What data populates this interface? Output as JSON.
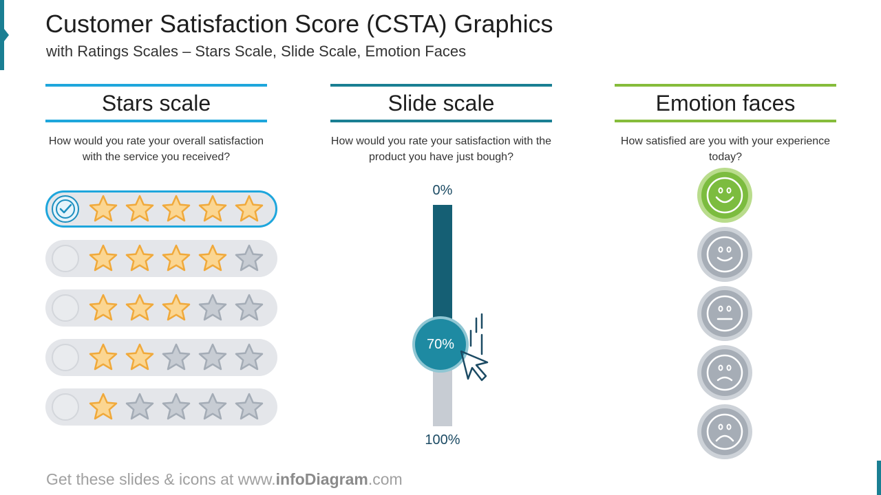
{
  "header": {
    "title": "Customer Satisfaction Score (CSTA) Graphics",
    "subtitle": "with Ratings Scales – Stars Scale, Slide Scale, Emotion Faces"
  },
  "columns": [
    {
      "title": "Stars scale",
      "question": "How would you rate your overall satisfaction with the service you received?",
      "accent": "#1ea6dc"
    },
    {
      "title": "Slide scale",
      "question": "How would you rate your satisfaction with the product you have just bough?",
      "accent": "#1a7f93"
    },
    {
      "title": "Emotion faces",
      "question": "How satisfied are you with your experience today?",
      "accent": "#86bc3b"
    }
  ],
  "stars_scale": {
    "options": [
      {
        "stars": 5,
        "selected": true
      },
      {
        "stars": 4,
        "selected": false
      },
      {
        "stars": 3,
        "selected": false
      },
      {
        "stars": 2,
        "selected": false
      },
      {
        "stars": 1,
        "selected": false
      }
    ],
    "colors": {
      "filled": "#fbd692",
      "filled_stroke": "#f0a93b",
      "empty": "#c7ccd3",
      "empty_stroke": "#a4acb6",
      "check": "#1d8fbf"
    }
  },
  "slide_scale": {
    "top_label": "0%",
    "bottom_label": "100%",
    "value_label": "70%",
    "value": 0.7,
    "icon": "cursor-click-icon",
    "colors": {
      "filled": "#155f74",
      "empty": "#c7ccd3",
      "knob": "#1e8aa2"
    }
  },
  "emotion_faces": {
    "faces": [
      {
        "icon": "very-happy-face-icon",
        "mood": "very-happy",
        "selected": true
      },
      {
        "icon": "happy-face-icon",
        "mood": "happy",
        "selected": false
      },
      {
        "icon": "neutral-face-icon",
        "mood": "neutral",
        "selected": false
      },
      {
        "icon": "sad-face-icon",
        "mood": "sad",
        "selected": false
      },
      {
        "icon": "very-sad-face-icon",
        "mood": "very-sad",
        "selected": false
      }
    ],
    "colors": {
      "selected": "#7cbc3f",
      "selected_ring": "#b9dc8c",
      "default": "#a6adb6",
      "default_ring": "#cdd2d8"
    }
  },
  "footer": {
    "prefix": "Get these slides & icons at www.",
    "brand": "infoDiagram",
    "suffix": ".com"
  }
}
